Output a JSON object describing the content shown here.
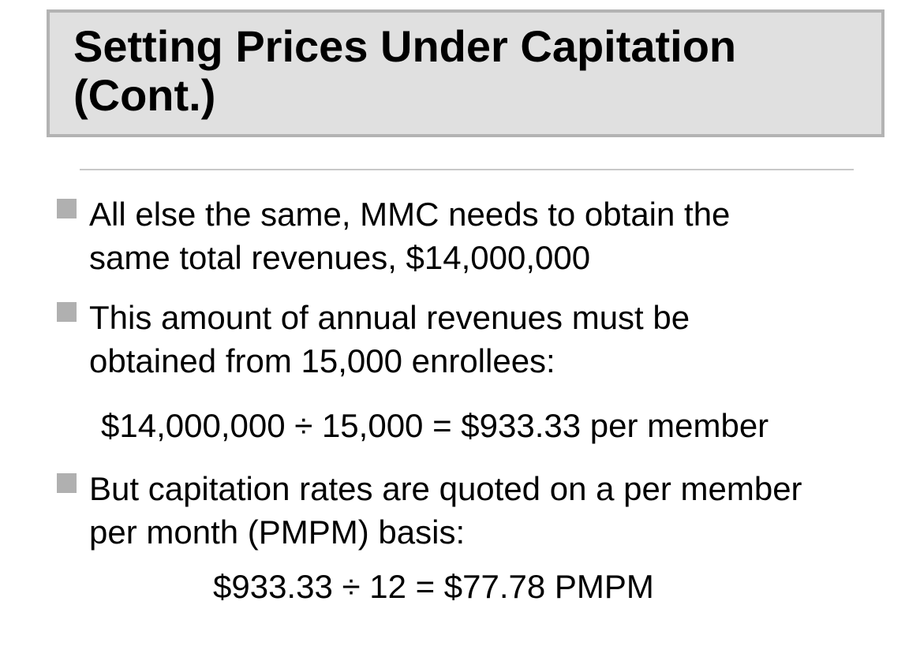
{
  "title": "Setting Prices Under Capitation\n(Cont.)",
  "bullets": [
    {
      "text": "All else the same, MMC needs to obtain the\nsame total revenues, $14,000,000"
    },
    {
      "text": "This amount of annual revenues must be\nobtained from 15,000 enrollees:"
    },
    {
      "text": "But capitation rates are quoted on a per member\nper month (PMPM) basis:"
    }
  ],
  "formulas": [
    "$14,000,000 ÷ 15,000 = $933.33 per member",
    "$933.33 ÷ 12 = $77.78 PMPM"
  ],
  "colors": {
    "title_background": "#e0e0e0",
    "title_border": "#b3b3b3",
    "bullet_marker": "#b0b0b0",
    "divider": "#c8c8c8"
  }
}
